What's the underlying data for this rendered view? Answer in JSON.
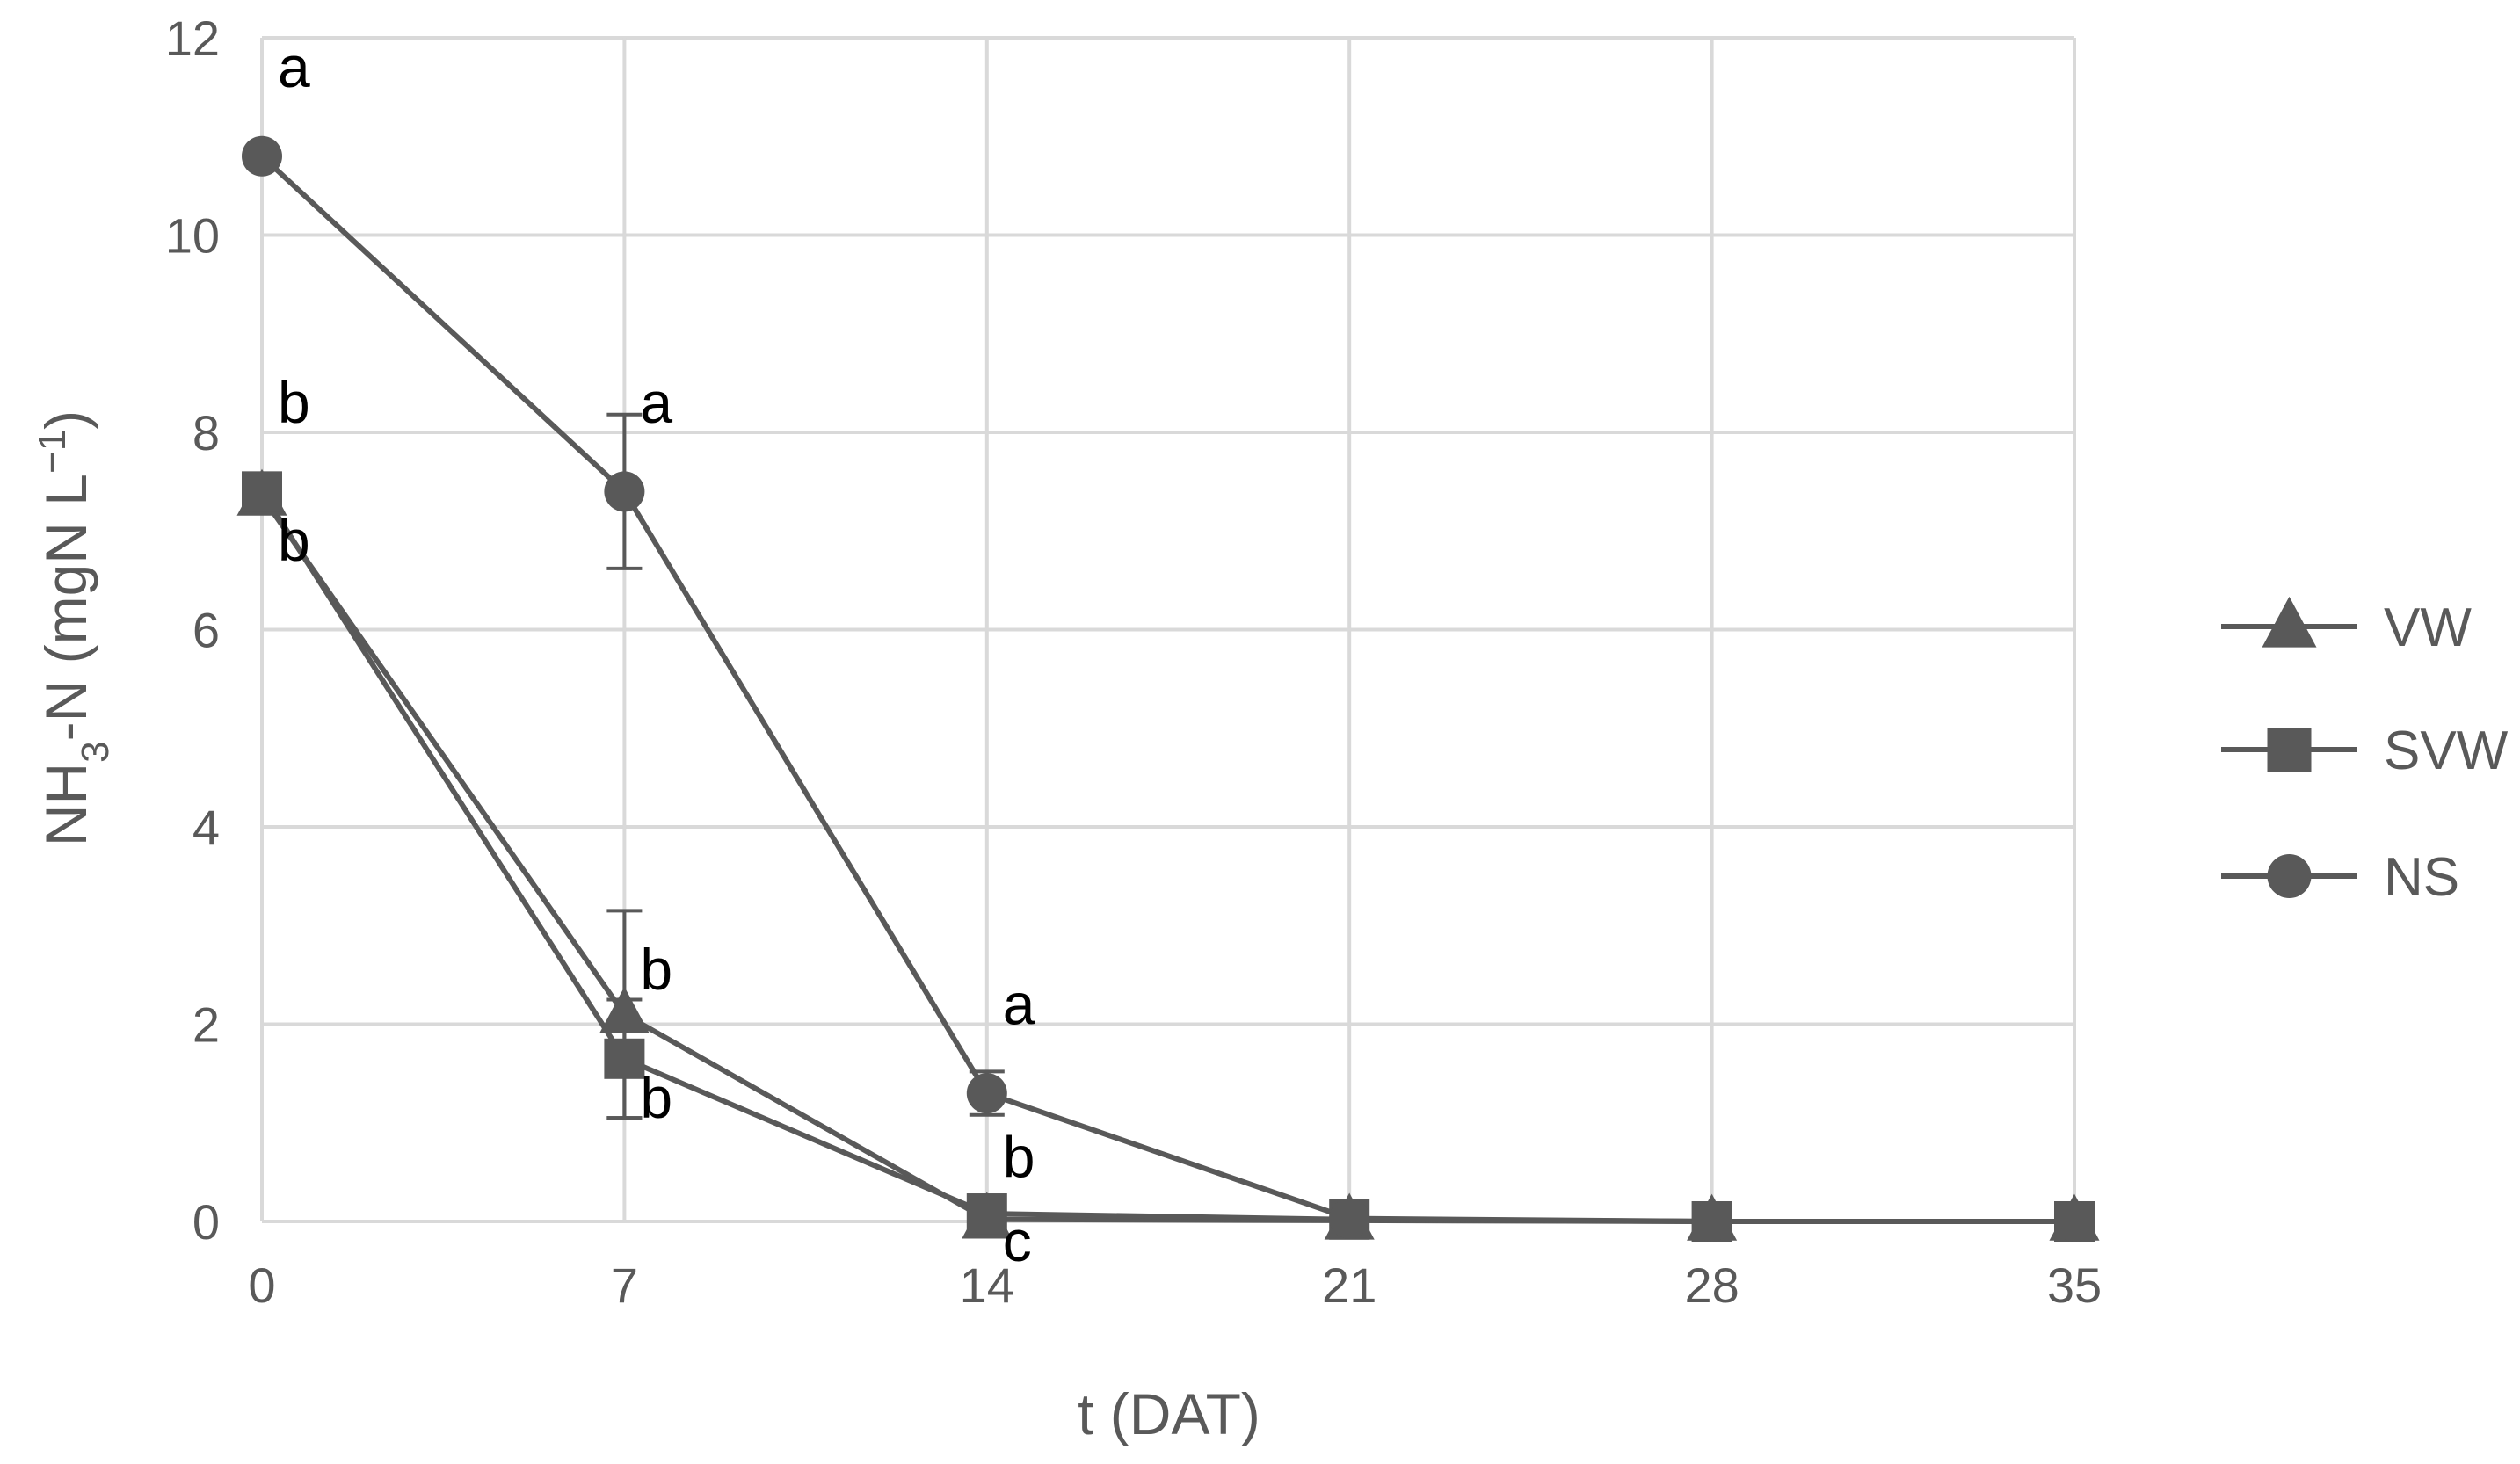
{
  "colors": {
    "series": "#595959",
    "grid": "#d9d9d9",
    "text": "#595959",
    "annotation": "#000000",
    "background": "#ffffff"
  },
  "chart_data": {
    "type": "line",
    "title": "",
    "xlabel": "t (DAT)",
    "ylabel": {
      "prefix": "NH",
      "subscript": "3",
      "mid": "-N (mgN L",
      "superscript": "−1",
      "suffix": ")"
    },
    "x": [
      0,
      7,
      14,
      21,
      28,
      35
    ],
    "xlim": [
      0,
      35
    ],
    "ylim": [
      0,
      12
    ],
    "x_ticks": [
      "0",
      "7",
      "14",
      "21",
      "28",
      "35"
    ],
    "y_ticks": [
      "0",
      "2",
      "4",
      "6",
      "8",
      "10",
      "12"
    ],
    "grid": true,
    "legend_position": "right",
    "series": [
      {
        "name": "VW",
        "marker": "triangle",
        "values": [
          7.35,
          2.1,
          0.02,
          0.01,
          0.0,
          0.0
        ],
        "error": [
          0,
          1.05,
          0,
          0,
          0,
          0
        ]
      },
      {
        "name": "SVW",
        "marker": "square",
        "values": [
          7.4,
          1.65,
          0.08,
          0.02,
          0.0,
          0.0
        ],
        "error": [
          0,
          0.6,
          0,
          0,
          0,
          0
        ]
      },
      {
        "name": "NS",
        "marker": "circle",
        "values": [
          10.8,
          7.4,
          1.3,
          0.03,
          0.0,
          0.0
        ],
        "error": [
          0,
          0.78,
          0.22,
          0,
          0,
          0
        ]
      }
    ],
    "annotations": [
      {
        "text": "a",
        "x": 0,
        "y": 11.5
      },
      {
        "text": "b",
        "x": 0,
        "y": 8.1
      },
      {
        "text": "b",
        "x": 0,
        "y": 6.7
      },
      {
        "text": "a",
        "x": 7,
        "y": 8.1
      },
      {
        "text": "b",
        "x": 7,
        "y": 2.35
      },
      {
        "text": "b",
        "x": 7,
        "y": 1.05
      },
      {
        "text": "a",
        "x": 14,
        "y": 2.0
      },
      {
        "text": "b",
        "x": 14,
        "y": 0.45
      },
      {
        "text": "c",
        "x": 14,
        "y": -0.4
      }
    ]
  }
}
